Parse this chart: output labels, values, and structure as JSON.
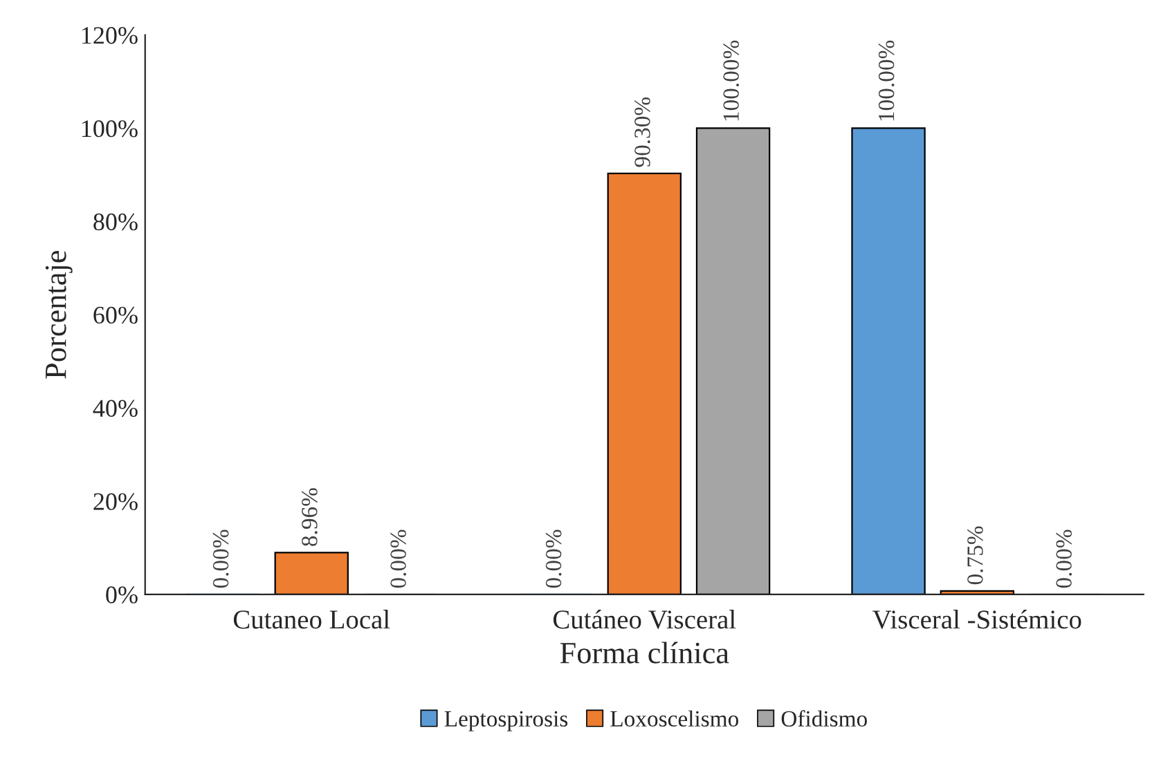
{
  "chart_data": {
    "type": "bar",
    "xlabel": "Forma clínica",
    "ylabel": "Porcentaje",
    "categories": [
      "Cutaneo Local",
      "Cutáneo Visceral",
      "Visceral -Sistémico"
    ],
    "series": [
      {
        "name": "Leptospirosis",
        "color": "#5b9bd5",
        "values": [
          0,
          0,
          100
        ],
        "value_labels": [
          "0.00%",
          "0.00%",
          "100.00%"
        ]
      },
      {
        "name": "Loxoscelismo",
        "color": "#ed7d31",
        "values": [
          8.96,
          90.3,
          0.75
        ],
        "value_labels": [
          "8.96%",
          "90.30%",
          "0.75%"
        ]
      },
      {
        "name": "Ofidismo",
        "color": "#a5a5a5",
        "values": [
          0,
          100,
          0
        ],
        "value_labels": [
          "0.00%",
          "100.00%",
          "0.00%"
        ]
      }
    ],
    "ylim": [
      0,
      120
    ],
    "yticks": [
      {
        "value": 0,
        "label": "0%"
      },
      {
        "value": 20,
        "label": "20%"
      },
      {
        "value": 40,
        "label": "40%"
      },
      {
        "value": 60,
        "label": "60%"
      },
      {
        "value": 80,
        "label": "80%"
      },
      {
        "value": 100,
        "label": "100%"
      },
      {
        "value": 120,
        "label": "120%"
      }
    ],
    "grid": false,
    "legend": "bottom"
  }
}
